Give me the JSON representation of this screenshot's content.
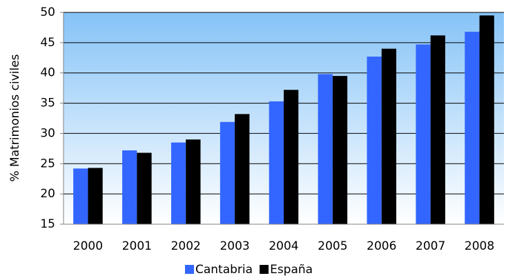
{
  "chart_data": {
    "type": "bar",
    "y_label": "% Matrimonios civiles",
    "categories": [
      "2000",
      "2001",
      "2002",
      "2003",
      "2004",
      "2005",
      "2006",
      "2007",
      "2008"
    ],
    "series": [
      {
        "name": "Cantabria",
        "color": "#3366ff",
        "values": [
          24.2,
          27.2,
          28.5,
          31.9,
          35.3,
          39.8,
          42.7,
          44.7,
          46.8
        ]
      },
      {
        "name": "España",
        "color": "#000000",
        "values": [
          24.3,
          26.8,
          29.0,
          33.2,
          37.2,
          39.5,
          44.0,
          46.2,
          49.5
        ]
      }
    ],
    "ylim": [
      15,
      50
    ],
    "yticks": [
      15,
      20,
      25,
      30,
      35,
      40,
      45,
      50
    ],
    "grid": true,
    "legend": "bottom"
  }
}
